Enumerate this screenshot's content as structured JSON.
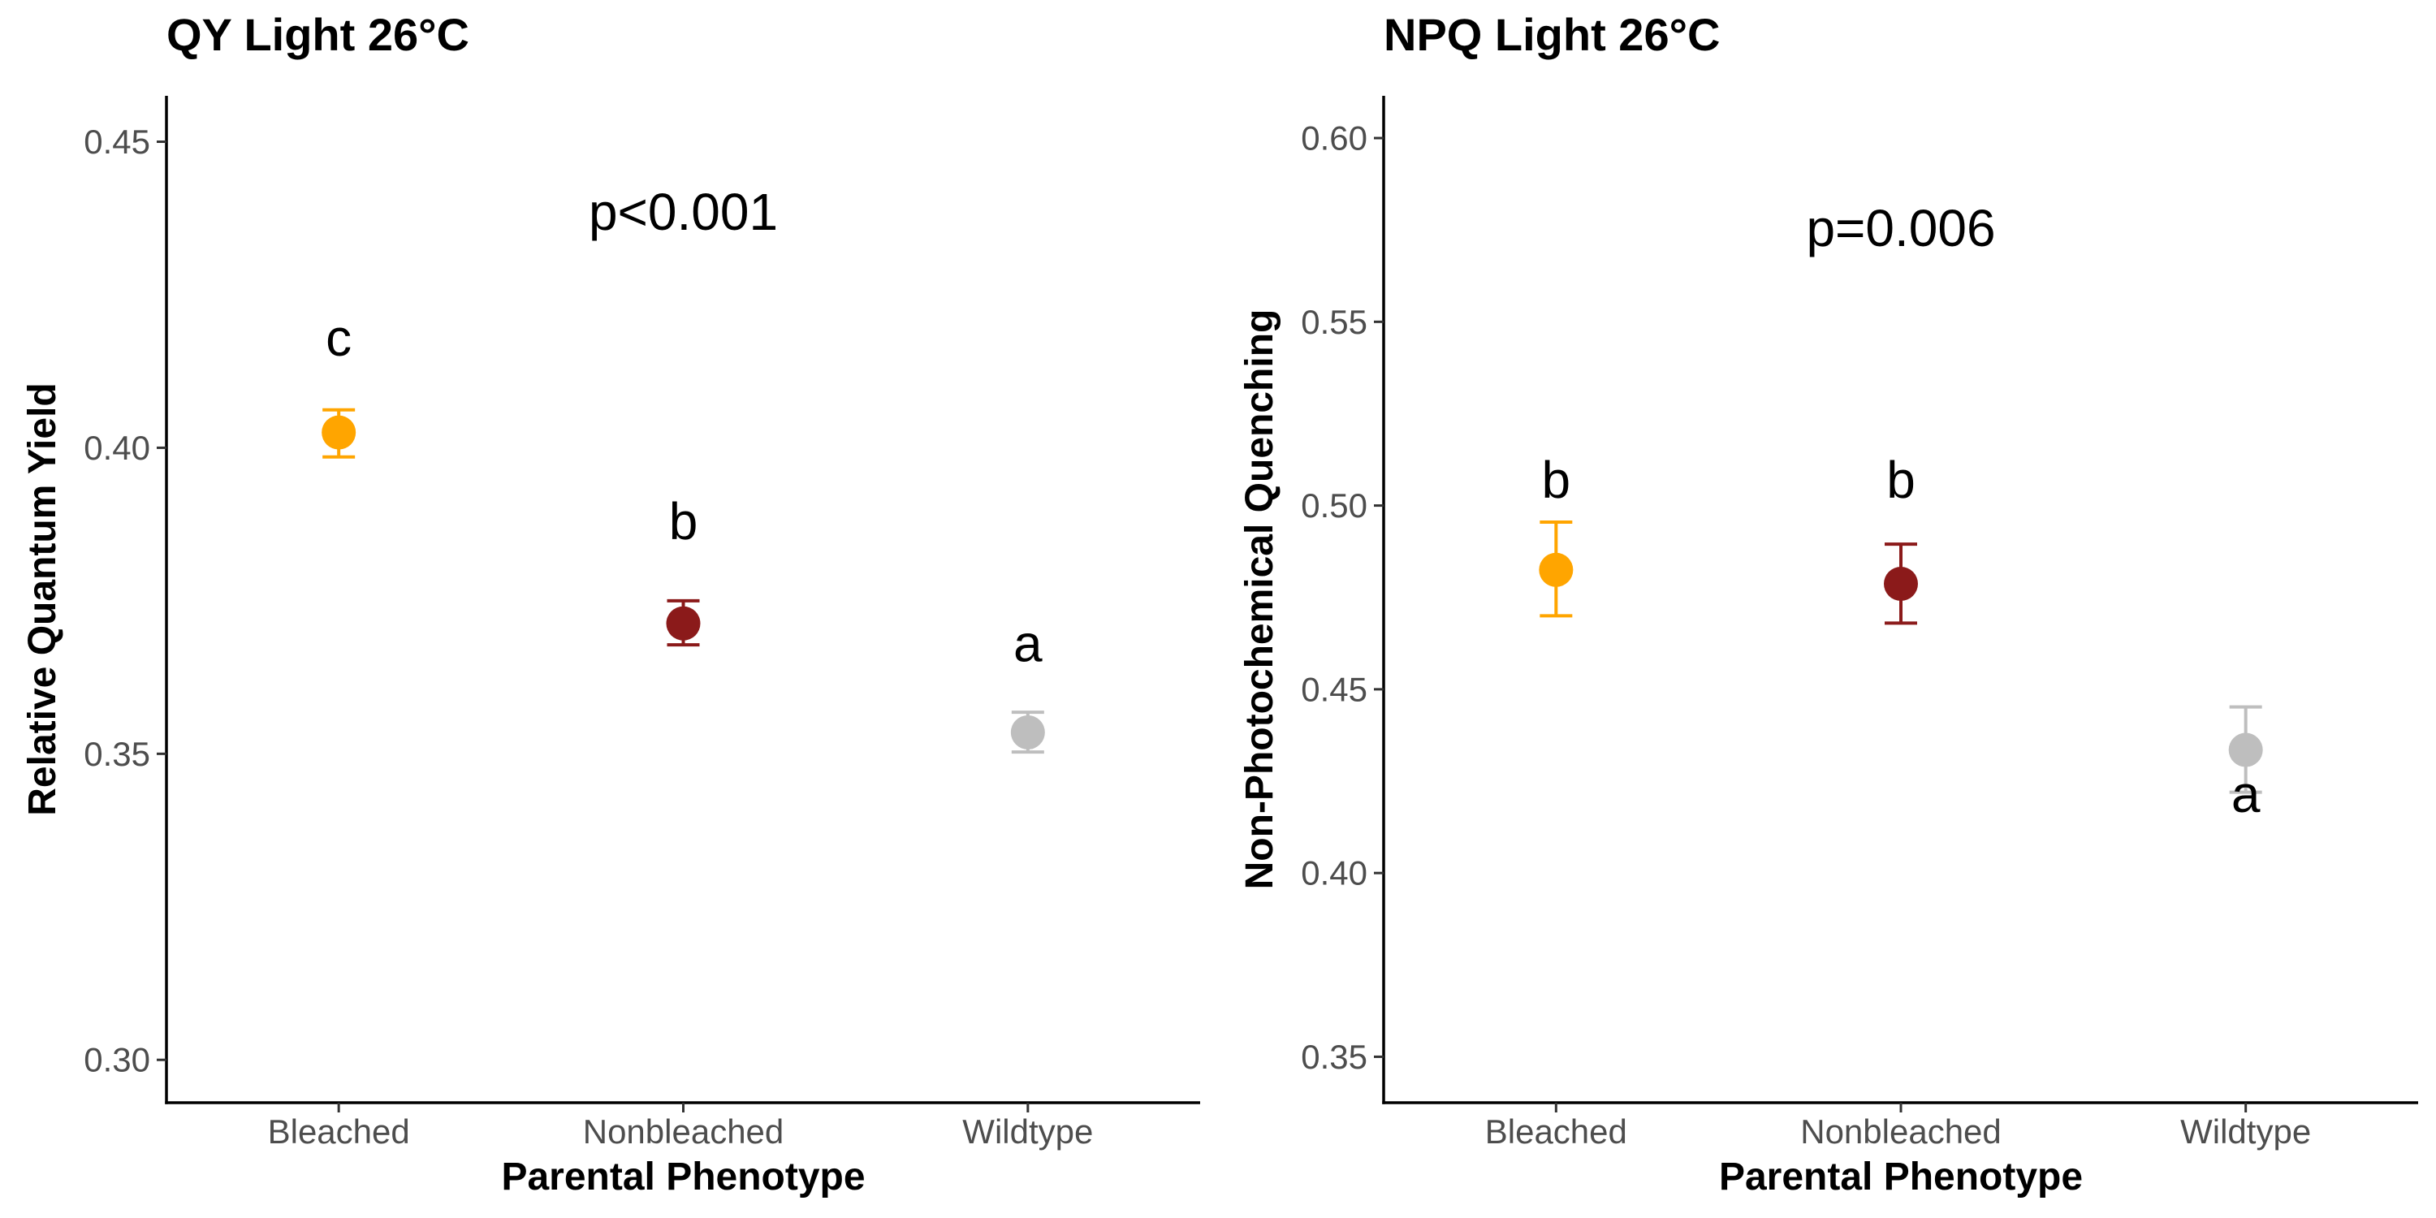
{
  "chart_data": [
    {
      "type": "scatter",
      "title": "QY Light 26°C",
      "xlabel": "Parental Phenotype",
      "ylabel": "Relative Quantum Yield",
      "categories": [
        "Bleached",
        "Nonbleached",
        "Wildtype"
      ],
      "values": [
        0.4025,
        0.3713,
        0.3535
      ],
      "error_low": [
        0.3985,
        0.3678,
        0.3503
      ],
      "error_high": [
        0.4062,
        0.375,
        0.3568
      ],
      "point_colors": [
        "#FFA500",
        "#8B1A1A",
        "#BEBEBE"
      ],
      "letters": [
        "c",
        "b",
        "a"
      ],
      "letter_y": [
        0.418,
        0.388,
        0.368
      ],
      "p_value": "p<0.001",
      "p_value_y": 0.4385,
      "ylim": [
        0.293,
        0.4575
      ],
      "yticks": [
        0.3,
        0.35,
        0.4,
        0.45
      ],
      "ytick_labels": [
        "0.30",
        "0.35",
        "0.40",
        "0.45"
      ],
      "grid": false
    },
    {
      "type": "scatter",
      "title": "NPQ Light 26°C",
      "xlabel": "Parental Phenotype",
      "ylabel": "Non-Photochemical Quenching",
      "categories": [
        "Bleached",
        "Nonbleached",
        "Wildtype"
      ],
      "values": [
        0.4825,
        0.4787,
        0.4335
      ],
      "error_low": [
        0.47,
        0.468,
        0.422
      ],
      "error_high": [
        0.4955,
        0.4895,
        0.4452
      ],
      "point_colors": [
        "#FFA500",
        "#8B1A1A",
        "#BEBEBE"
      ],
      "letters": [
        "b",
        "b",
        "a"
      ],
      "letter_y": [
        0.507,
        0.507,
        0.4215
      ],
      "p_value": "p=0.006",
      "p_value_y": 0.5755,
      "ylim": [
        0.3375,
        0.6115
      ],
      "yticks": [
        0.35,
        0.4,
        0.45,
        0.5,
        0.55,
        0.6
      ],
      "ytick_labels": [
        "0.35",
        "0.40",
        "0.45",
        "0.50",
        "0.55",
        "0.60"
      ],
      "grid": false
    }
  ]
}
